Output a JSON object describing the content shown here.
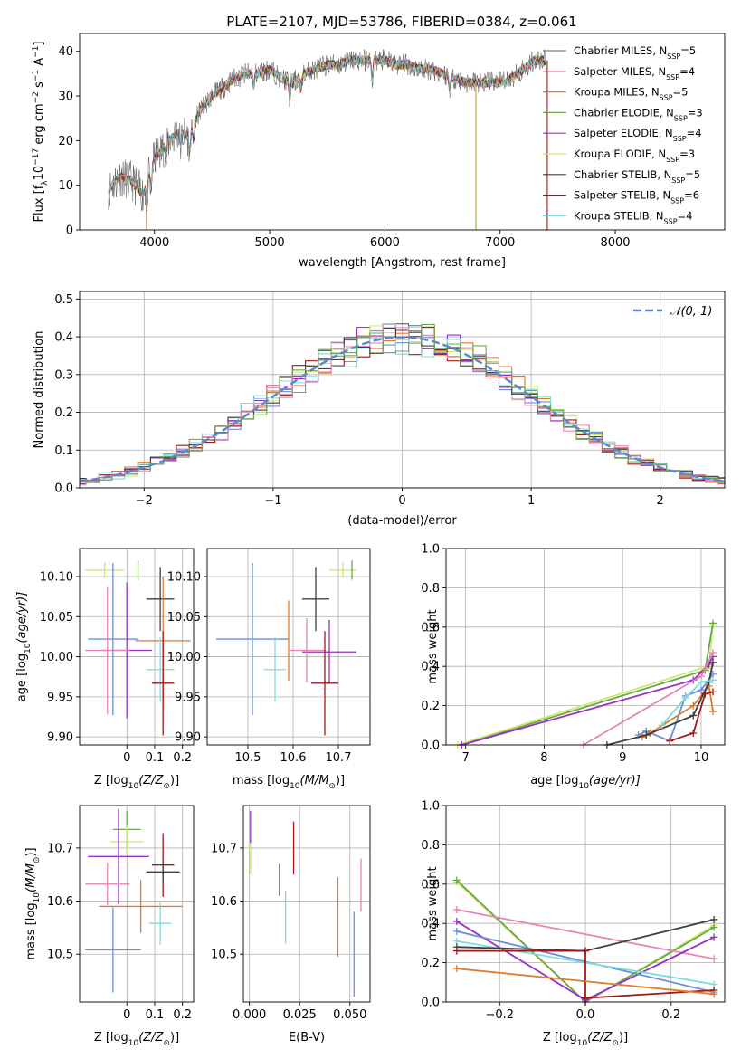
{
  "colors": [
    "#6a8fd8",
    "#e07b2a",
    "#9b2fc8",
    "#3f3f3f",
    "#a01818",
    "#cfe96f",
    "#7f7f7f",
    "#e685b5",
    "#7fdcdc",
    "#6aa84f"
  ],
  "chart_data": [
    {
      "id": "spectrum",
      "type": "line",
      "title": "PLATE=2107, MJD=53786, FIBERID=0384, z=0.061",
      "xlabel": "wavelength [Angstrom, rest frame]",
      "ylabel": "Flux [f",
      "ylabel_sub": "λ",
      "ylabel_rest": "10",
      "ylabel_exp": "−17",
      "ylabel_tail": " erg cm",
      "ylabel_exp2": "−2",
      "ylabel_tail2": " s",
      "ylabel_exp3": "−1",
      "ylabel_tail3": " A",
      "ylabel_exp4": "−1",
      "ylabel_end": "]",
      "xlim": [
        3350,
        8950
      ],
      "ylim": [
        0,
        44
      ],
      "xticks": [
        4000,
        5000,
        6000,
        7000,
        8000
      ],
      "yticks": [
        0,
        10,
        20,
        30,
        40
      ],
      "x_range": [
        3600,
        7400
      ],
      "legend": [
        {
          "name": "Chabrier MILES, N",
          "sub": "SSP",
          "tail": "=5",
          "color": "#7f7f7f"
        },
        {
          "name": "Salpeter MILES, N",
          "sub": "SSP",
          "tail": "=4",
          "color": "#e685b5"
        },
        {
          "name": "Kroupa MILES, N",
          "sub": "SSP",
          "tail": "=5",
          "color": "#e07b2a"
        },
        {
          "name": "Chabrier ELODIE, N",
          "sub": "SSP",
          "tail": "=3",
          "color": "#6aa84f"
        },
        {
          "name": "Salpeter ELODIE, N",
          "sub": "SSP",
          "tail": "=4",
          "color": "#9b2fc8"
        },
        {
          "name": "Kroupa ELODIE, N",
          "sub": "SSP",
          "tail": "=3",
          "color": "#cfe96f"
        },
        {
          "name": "Chabrier STELIB, N",
          "sub": "SSP",
          "tail": "=5",
          "color": "#3f3f3f"
        },
        {
          "name": "Salpeter STELIB, N",
          "sub": "SSP",
          "tail": "=6",
          "color": "#a01818"
        },
        {
          "name": "Kroupa STELIB, N",
          "sub": "SSP",
          "tail": "=4",
          "color": "#7fdcdc"
        }
      ],
      "continuum": [
        [
          3600,
          9
        ],
        [
          3700,
          12
        ],
        [
          3800,
          11
        ],
        [
          3900,
          8
        ],
        [
          4000,
          16
        ],
        [
          4100,
          19
        ],
        [
          4200,
          22
        ],
        [
          4300,
          21
        ],
        [
          4400,
          27
        ],
        [
          4500,
          30
        ],
        [
          4600,
          32
        ],
        [
          4700,
          34
        ],
        [
          4800,
          35
        ],
        [
          4900,
          35
        ],
        [
          5000,
          36
        ],
        [
          5100,
          34
        ],
        [
          5200,
          33
        ],
        [
          5300,
          35
        ],
        [
          5400,
          36
        ],
        [
          5500,
          37
        ],
        [
          5600,
          37
        ],
        [
          5700,
          38
        ],
        [
          5800,
          38
        ],
        [
          5900,
          38
        ],
        [
          6000,
          38
        ],
        [
          6100,
          37
        ],
        [
          6200,
          37
        ],
        [
          6300,
          36
        ],
        [
          6400,
          36
        ],
        [
          6500,
          35
        ],
        [
          6600,
          34
        ],
        [
          6700,
          33
        ],
        [
          6800,
          33
        ],
        [
          6900,
          33
        ],
        [
          7000,
          33
        ],
        [
          7100,
          34
        ],
        [
          7200,
          36
        ],
        [
          7300,
          38
        ],
        [
          7400,
          38
        ]
      ]
    },
    {
      "id": "residuals",
      "type": "line",
      "xlabel": "(data-model)/error",
      "ylabel": "Normed distribution",
      "xlim": [
        -2.5,
        2.5
      ],
      "ylim": [
        0,
        0.52
      ],
      "xticks": [
        -2,
        -1,
        0,
        1,
        2
      ],
      "xtick_labels": [
        "−2",
        "−1",
        "0",
        "1",
        "2"
      ],
      "yticks": [
        0.0,
        0.1,
        0.2,
        0.3,
        0.4,
        0.5
      ],
      "ytick_labels": [
        "0.0",
        "0.1",
        "0.2",
        "0.3",
        "0.4",
        "0.5"
      ],
      "grid": true,
      "legend_label": "𝒩(0, 1)",
      "legend_position": "top-right",
      "hist_bin_width": 0.1
    },
    {
      "id": "age-vs-Z",
      "type": "scatter",
      "xlabel": "Z [log",
      "xlabel_sub": "10",
      "xlabel_tail": "(Z/Z",
      "xlabel_sun": "⊙",
      "xlabel_end": ")]",
      "ylabel": "age  [log",
      "ylabel_sub": "10",
      "ylabel_tail": "(age/yr)]",
      "xlim": [
        -0.17,
        0.24
      ],
      "ylim": [
        9.89,
        10.135
      ],
      "xticks": [
        0.0,
        0.1,
        0.2
      ],
      "yticks": [
        9.9,
        9.95,
        10.0,
        10.05,
        10.1
      ],
      "ytick_labels": [
        "9.90",
        "9.95",
        "10.00",
        "10.05",
        "10.10"
      ],
      "points": [
        {
          "x": -0.08,
          "y": 10.108,
          "xerr": 0.07,
          "yerr": 0.01,
          "color": "#cfe96f"
        },
        {
          "x": 0.04,
          "y": 10.108,
          "xerr": 0.0,
          "yerr": 0.012,
          "color": "#6aa84f"
        },
        {
          "x": 0.12,
          "y": 10.072,
          "xerr": 0.05,
          "yerr": 0.04,
          "color": "#3f3f3f"
        },
        {
          "x": -0.05,
          "y": 10.022,
          "xerr": 0.09,
          "yerr": 0.095,
          "color": "#6a8fd8"
        },
        {
          "x": 0.13,
          "y": 10.02,
          "xerr": 0.1,
          "yerr": 0.08,
          "color": "#e07b2a"
        },
        {
          "x": 0.0,
          "y": 10.008,
          "xerr": 0.09,
          "yerr": 0.085,
          "color": "#9b2fc8"
        },
        {
          "x": -0.07,
          "y": 10.008,
          "xerr": 0.08,
          "yerr": 0.08,
          "color": "#e685b5"
        },
        {
          "x": 0.12,
          "y": 9.984,
          "xerr": 0.05,
          "yerr": 0.04,
          "color": "#7fdcdc"
        },
        {
          "x": 0.13,
          "y": 9.967,
          "xerr": 0.04,
          "yerr": 0.065,
          "color": "#a01818"
        }
      ]
    },
    {
      "id": "age-vs-mass",
      "type": "scatter",
      "xlabel": "mass [log",
      "xlabel_sub": "10",
      "xlabel_tail": "(M/M",
      "xlabel_sun": "⊙",
      "xlabel_end": ")]",
      "xlim": [
        10.41,
        10.77
      ],
      "ylim": [
        9.89,
        10.135
      ],
      "xticks": [
        10.5,
        10.6,
        10.7
      ],
      "yticks": [
        9.9,
        9.95,
        10.0,
        10.05,
        10.1
      ],
      "ytick_labels": [
        "9.90",
        "9.95",
        "10.00",
        "10.05",
        "10.10"
      ],
      "points": [
        {
          "x": 10.71,
          "y": 10.108,
          "xerr": 0.03,
          "yerr": 0.01,
          "color": "#cfe96f"
        },
        {
          "x": 10.73,
          "y": 10.108,
          "xerr": 0.0,
          "yerr": 0.012,
          "color": "#6aa84f"
        },
        {
          "x": 10.65,
          "y": 10.072,
          "xerr": 0.03,
          "yerr": 0.04,
          "color": "#3f3f3f"
        },
        {
          "x": 10.51,
          "y": 10.022,
          "xerr": 0.08,
          "yerr": 0.095,
          "color": "#6a8fd8"
        },
        {
          "x": 10.59,
          "y": 10.02,
          "xerr": 0.0,
          "yerr": 0.05,
          "color": "#e07b2a"
        },
        {
          "x": 10.68,
          "y": 10.006,
          "xerr": 0.06,
          "yerr": 0.04,
          "color": "#9b2fc8"
        },
        {
          "x": 10.63,
          "y": 10.008,
          "xerr": 0.04,
          "yerr": 0.04,
          "color": "#e685b5"
        },
        {
          "x": 10.56,
          "y": 9.984,
          "xerr": 0.025,
          "yerr": 0.04,
          "color": "#7fdcdc"
        },
        {
          "x": 10.67,
          "y": 9.967,
          "xerr": 0.03,
          "yerr": 0.065,
          "color": "#a01818"
        }
      ]
    },
    {
      "id": "mass-weight-vs-age",
      "type": "line",
      "xlabel": "age  [log",
      "xlabel_sub": "10",
      "xlabel_tail": "(age/yr)]",
      "ylabel": "mass weight",
      "xlim": [
        6.75,
        10.3
      ],
      "ylim": [
        0,
        1.0
      ],
      "xticks": [
        7,
        8,
        9,
        10
      ],
      "yticks": [
        0.0,
        0.2,
        0.4,
        0.6,
        0.8,
        1.0
      ],
      "ytick_labels": [
        "0.0",
        "0.2",
        "0.4",
        "0.6",
        "0.8",
        "1.0"
      ],
      "series": [
        {
          "color": "#cfe96f",
          "x": [
            6.9,
            10.0,
            10.1,
            10.15
          ],
          "y": [
            0.0,
            0.39,
            0.39,
            0.61
          ]
        },
        {
          "color": "#6aa84f",
          "x": [
            6.95,
            10.05,
            10.15
          ],
          "y": [
            0.0,
            0.38,
            0.62
          ]
        },
        {
          "color": "#9b2fc8",
          "x": [
            6.95,
            9.9,
            10.1,
            10.15
          ],
          "y": [
            0.0,
            0.33,
            0.41,
            0.45
          ]
        },
        {
          "color": "#e685b5",
          "x": [
            8.5,
            10.0,
            10.15
          ],
          "y": [
            0.0,
            0.35,
            0.47
          ]
        },
        {
          "color": "#6a8fd8",
          "x": [
            9.2,
            9.3,
            9.6,
            9.8,
            10.0,
            10.15
          ],
          "y": [
            0.05,
            0.07,
            0.02,
            0.25,
            0.28,
            0.36
          ]
        },
        {
          "color": "#e07b2a",
          "x": [
            9.25,
            9.35,
            9.9,
            10.1,
            10.15
          ],
          "y": [
            0.04,
            0.06,
            0.2,
            0.3,
            0.17
          ]
        },
        {
          "color": "#3f3f3f",
          "x": [
            8.8,
            9.3,
            9.9,
            10.1,
            10.15
          ],
          "y": [
            0.0,
            0.05,
            0.15,
            0.32,
            0.42
          ]
        },
        {
          "color": "#a01818",
          "x": [
            9.6,
            9.9,
            10.05,
            10.15
          ],
          "y": [
            0.02,
            0.06,
            0.26,
            0.27
          ]
        },
        {
          "color": "#7fdcdc",
          "x": [
            9.5,
            9.8,
            10.0,
            10.15
          ],
          "y": [
            0.1,
            0.24,
            0.32,
            0.33
          ]
        }
      ]
    },
    {
      "id": "mass-vs-Z",
      "type": "scatter",
      "xlabel": "Z [log",
      "xlabel_sub": "10",
      "xlabel_tail": "(Z/Z",
      "xlabel_sun": "⊙",
      "xlabel_end": ")]",
      "ylabel": "mass [log",
      "ylabel_sub": "10",
      "ylabel_tail": "(M/M",
      "ylabel_sun": "⊙",
      "ylabel_end": ")]",
      "xlim": [
        -0.17,
        0.24
      ],
      "ylim": [
        10.41,
        10.78
      ],
      "xticks": [
        0.0,
        0.1,
        0.2
      ],
      "yticks": [
        10.5,
        10.6,
        10.7
      ],
      "points": [
        {
          "x": 0.0,
          "y": 10.735,
          "xerr": 0.05,
          "yerr": 0.035,
          "color": "#6aa84f"
        },
        {
          "x": 0.0,
          "y": 10.712,
          "xerr": 0.06,
          "yerr": 0.03,
          "color": "#cfe96f"
        },
        {
          "x": -0.03,
          "y": 10.684,
          "xerr": 0.11,
          "yerr": 0.09,
          "color": "#9b2fc8"
        },
        {
          "x": 0.13,
          "y": 10.668,
          "xerr": 0.04,
          "yerr": 0.06,
          "color": "#a01818"
        },
        {
          "x": 0.13,
          "y": 10.655,
          "xerr": 0.06,
          "yerr": 0.02,
          "color": "#3f3f3f"
        },
        {
          "x": -0.07,
          "y": 10.632,
          "xerr": 0.08,
          "yerr": 0.04,
          "color": "#e685b5"
        },
        {
          "x": 0.05,
          "y": 10.59,
          "xerr": 0.15,
          "yerr": 0.05,
          "color": "#e07b2a"
        },
        {
          "x": 0.12,
          "y": 10.558,
          "xerr": 0.04,
          "yerr": 0.04,
          "color": "#7fdcdc"
        },
        {
          "x": -0.05,
          "y": 10.508,
          "xerr": 0.1,
          "yerr": 0.08,
          "color": "#6a8fd8"
        }
      ]
    },
    {
      "id": "mass-vs-EBV",
      "type": "scatter",
      "xlabel": "E(B-V)",
      "xlim": [
        -0.003,
        0.06
      ],
      "ylim": [
        10.41,
        10.78
      ],
      "xticks": [
        0.0,
        0.025,
        0.05
      ],
      "xtick_labels": [
        "0.000",
        "0.025",
        "0.050"
      ],
      "yticks": [
        10.5,
        10.6,
        10.7
      ],
      "points": [
        {
          "x": 0.0005,
          "y": 10.74,
          "xerr": 0.0,
          "yerr": 0.03,
          "color": "#9b2fc8"
        },
        {
          "x": 0.0005,
          "y": 10.68,
          "xerr": 0.0,
          "yerr": 0.03,
          "color": "#cfe96f"
        },
        {
          "x": 0.022,
          "y": 10.7,
          "xerr": 0.0,
          "yerr": 0.05,
          "color": "#a01818"
        },
        {
          "x": 0.015,
          "y": 10.64,
          "xerr": 0.0,
          "yerr": 0.03,
          "color": "#3f3f3f"
        },
        {
          "x": 0.018,
          "y": 10.57,
          "xerr": 0.0,
          "yerr": 0.05,
          "color": "#7fdcdc"
        },
        {
          "x": 0.044,
          "y": 10.57,
          "xerr": 0.0,
          "yerr": 0.075,
          "color": "#e07b2a"
        },
        {
          "x": 0.052,
          "y": 10.5,
          "xerr": 0.0,
          "yerr": 0.08,
          "color": "#6a8fd8"
        },
        {
          "x": 0.0555,
          "y": 10.63,
          "xerr": 0.0,
          "yerr": 0.05,
          "color": "#e685b5"
        }
      ]
    },
    {
      "id": "mass-weight-vs-Z",
      "type": "line",
      "xlabel": "Z [log",
      "xlabel_sub": "10",
      "xlabel_tail": "(Z/Z",
      "xlabel_sun": "⊙",
      "xlabel_end": ")]",
      "ylabel": "mass weight",
      "xlim": [
        -0.325,
        0.325
      ],
      "ylim": [
        0,
        1.0
      ],
      "xticks": [
        -0.2,
        0.0,
        0.2
      ],
      "xtick_labels": [
        "−0.2",
        "0.0",
        "0.2"
      ],
      "yticks": [
        0.0,
        0.2,
        0.4,
        0.6,
        0.8,
        1.0
      ],
      "ytick_labels": [
        "0.0",
        "0.2",
        "0.4",
        "0.6",
        "0.8",
        "1.0"
      ],
      "series": [
        {
          "color": "#cfe96f",
          "x": [
            -0.3,
            0.0,
            0.3
          ],
          "y": [
            0.61,
            0.0,
            0.39
          ]
        },
        {
          "color": "#6aa84f",
          "x": [
            -0.3,
            0.0,
            0.3
          ],
          "y": [
            0.62,
            0.0,
            0.38
          ]
        },
        {
          "color": "#e685b5",
          "x": [
            -0.3,
            0.3
          ],
          "y": [
            0.47,
            0.22
          ]
        },
        {
          "color": "#9b2fc8",
          "x": [
            -0.3,
            0.0,
            0.3
          ],
          "y": [
            0.41,
            0.01,
            0.33
          ]
        },
        {
          "color": "#6a8fd8",
          "x": [
            -0.3,
            0.3
          ],
          "y": [
            0.36,
            0.05
          ]
        },
        {
          "color": "#7fdcdc",
          "x": [
            -0.3,
            0.3
          ],
          "y": [
            0.31,
            0.09
          ]
        },
        {
          "color": "#3f3f3f",
          "x": [
            -0.3,
            0.0,
            0.3
          ],
          "y": [
            0.28,
            0.26,
            0.42
          ]
        },
        {
          "color": "#a01818",
          "x": [
            -0.3,
            0.0,
            0.0,
            0.3
          ],
          "y": [
            0.26,
            0.26,
            0.02,
            0.06
          ]
        },
        {
          "color": "#e07b2a",
          "x": [
            -0.3,
            0.3
          ],
          "y": [
            0.17,
            0.04
          ]
        }
      ]
    }
  ]
}
